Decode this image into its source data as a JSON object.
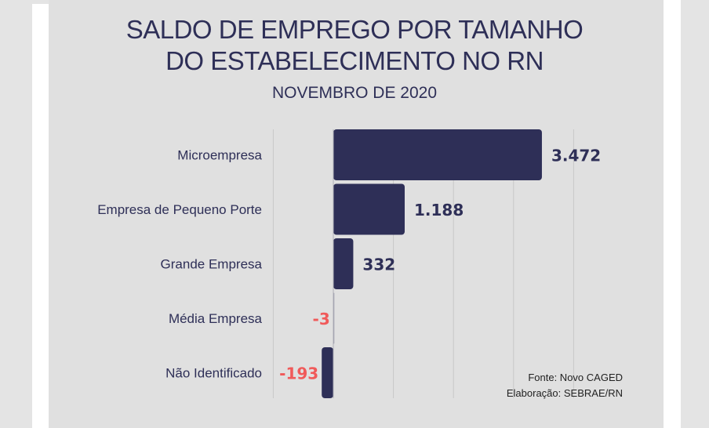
{
  "title": "SALDO DE EMPREGO POR TAMANHO DO ESTABELECIMENTO NO RN",
  "subtitle": "NOVEMBRO DE 2020",
  "source": "Fonte: Novo CAGED",
  "credit": "Elaboração: SEBRAE/RN",
  "colors": {
    "bar": "#2e2f57",
    "negative_label": "#f05a5a",
    "positive_label": "#2e2f57"
  },
  "chart_data": {
    "type": "bar",
    "orientation": "horizontal",
    "categories": [
      "Microempresa",
      "Empresa de Pequeno Porte",
      "Grande Empresa",
      "Média Empresa",
      "Não Identificado"
    ],
    "values": [
      3472,
      1188,
      332,
      -3,
      -193
    ],
    "data_labels": [
      "3.472",
      "1.188",
      "332",
      "-3",
      "-193"
    ],
    "title": "SALDO DE EMPREGO POR TAMANHO DO ESTABELECIMENTO NO RN",
    "subtitle": "NOVEMBRO DE 2020",
    "xlim": [
      -1000,
      4000
    ],
    "grid": true
  }
}
